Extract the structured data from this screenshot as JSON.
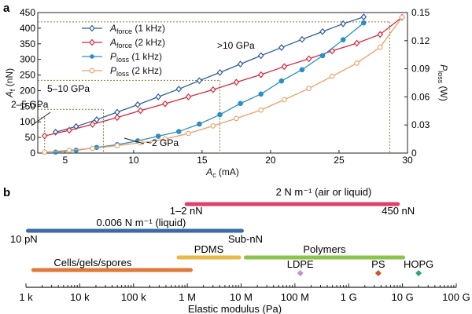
{
  "panel_labels": {
    "a": "a",
    "b": "b"
  },
  "chart_data": [
    {
      "type": "line",
      "xlabel_main": "A",
      "xlabel_sub": "c",
      "xlabel_unit": " (mA)",
      "ylabel_left_main": "A",
      "ylabel_left_sub": "f",
      "ylabel_left_unit": " (nN)",
      "ylabel_right_main": "P",
      "ylabel_right_sub": "loss",
      "ylabel_right_unit": " (W)",
      "xlim": [
        3,
        30
      ],
      "ylim_left": [
        0,
        450
      ],
      "ylim_right": [
        0,
        0.15
      ],
      "x_ticks": [
        "5",
        "10",
        "15",
        "20",
        "25",
        "30"
      ],
      "y_left_ticks": [
        "0",
        "50",
        "100",
        "150",
        "200",
        "250",
        "300",
        "350",
        "400",
        "450"
      ],
      "y_right_ticks": [
        "0",
        "0.03",
        "0.06",
        "0.09",
        "0.12",
        "0.15"
      ],
      "grid": false,
      "legend_position": "top-left",
      "colors": {
        "blue": "#2f5d9c",
        "red": "#d7283c",
        "lightblue": "#2a8fc6",
        "orange": "#e8a068",
        "guide": "#8c7a3c"
      },
      "series": [
        {
          "name_main": "A",
          "name_sub": "force",
          "name_tail": " (1 kHz)",
          "axis": "left",
          "marker": "diamond",
          "color": "#2f5d9c",
          "x": [
            4.3,
            5.8,
            7.3,
            8.8,
            10.3,
            11.8,
            13.3,
            14.8,
            16.3,
            17.8,
            19.3,
            20.8,
            22.3,
            23.8,
            25.3,
            26.8
          ],
          "y": [
            67,
            85,
            107,
            131,
            155,
            180,
            205,
            232,
            258,
            285,
            312,
            338,
            364,
            389,
            414,
            436
          ]
        },
        {
          "name_main": "A",
          "name_sub": "force",
          "name_tail": " (2 kHz)",
          "axis": "left",
          "marker": "diamond",
          "color": "#d7283c",
          "x": [
            3.5,
            5.3,
            7.0,
            8.8,
            10.5,
            12.3,
            14.0,
            15.8,
            17.5,
            19.3,
            21.0,
            22.8,
            24.5,
            26.3,
            28.0,
            29.6
          ],
          "y": [
            55,
            73,
            92,
            114,
            136,
            158,
            180,
            203,
            227,
            251,
            277,
            302,
            327,
            352,
            380,
            435
          ]
        },
        {
          "name_main": "P",
          "name_sub": "loss",
          "name_tail": " (1 kHz)",
          "axis": "right",
          "marker": "circle",
          "color": "#2a8fc6",
          "x": [
            4.3,
            5.8,
            7.3,
            8.8,
            10.3,
            11.8,
            13.3,
            14.8,
            16.3,
            17.8,
            19.3,
            20.8,
            22.3,
            23.8,
            25.3,
            26.8
          ],
          "y": [
            0.001,
            0.003,
            0.006,
            0.009,
            0.013,
            0.018,
            0.023,
            0.031,
            0.041,
            0.053,
            0.063,
            0.077,
            0.089,
            0.104,
            0.121,
            0.139
          ]
        },
        {
          "name_main": "P",
          "name_sub": "loss",
          "name_tail": " (2 kHz)",
          "axis": "right",
          "marker": "circle-open",
          "color": "#e8a068",
          "x": [
            3.5,
            5.3,
            7.0,
            8.8,
            10.5,
            12.3,
            14.0,
            15.8,
            17.5,
            19.3,
            21.0,
            22.8,
            24.5,
            26.3,
            28.0,
            29.6
          ],
          "y": [
            0.001,
            0.003,
            0.005,
            0.008,
            0.011,
            0.015,
            0.021,
            0.029,
            0.037,
            0.046,
            0.057,
            0.069,
            0.082,
            0.096,
            0.113,
            0.145
          ]
        }
      ],
      "annotations": {
        "gt10": ">10 GPa",
        "r5_10": "5–10 GPa",
        "r2_5": "2–5 GPa",
        "lt2": "~2 GPa"
      },
      "guides": [
        {
          "x": 3.5,
          "y": 113
        },
        {
          "x": 7.8,
          "y": 140
        },
        {
          "x": 16.3,
          "y": 233
        },
        {
          "x": 28.7,
          "y": 420
        }
      ]
    },
    {
      "type": "bar",
      "xlabel": "Elastic modulus (Pa)",
      "x_scale": "log",
      "xlim_exp": [
        3,
        11
      ],
      "x_ticks": [
        "1 k",
        "10 k",
        "100 k",
        "1 M",
        "10 M",
        "100 M",
        "1 G",
        "10 G",
        "100 G"
      ],
      "ranges": [
        {
          "label": "2 N m⁻¹ (air or liquid)",
          "from_exp": 5.95,
          "to_exp": 9.95,
          "color": "#e0406a"
        },
        {
          "label": "0.006 N m⁻¹ (liquid)",
          "from_exp": 3.0,
          "to_exp": 7.05,
          "color": "#3a6aa8"
        },
        {
          "label": "PDMS",
          "from_exp": 5.8,
          "to_exp": 7.0,
          "color": "#e8b84a"
        },
        {
          "label": "Polymers",
          "from_exp": 7.05,
          "to_exp": 10.05,
          "color": "#8cc34a"
        },
        {
          "label": "Cells/gels/spores",
          "from_exp": 3.1,
          "to_exp": 6.1,
          "color": "#e07a3a"
        }
      ],
      "range_end_labels": {
        "two_n_left": "1–2 nN",
        "two_n_right": "450 nN",
        "six_left": "10 pN",
        "six_right": "Sub-nN"
      },
      "points": [
        {
          "label": "LDPE",
          "exp": 8.1,
          "color": "#c58fd6"
        },
        {
          "label": "PS",
          "exp": 9.55,
          "color": "#c8562a"
        },
        {
          "label": "HOPG",
          "exp": 10.3,
          "color": "#2ea37a"
        }
      ]
    }
  ]
}
